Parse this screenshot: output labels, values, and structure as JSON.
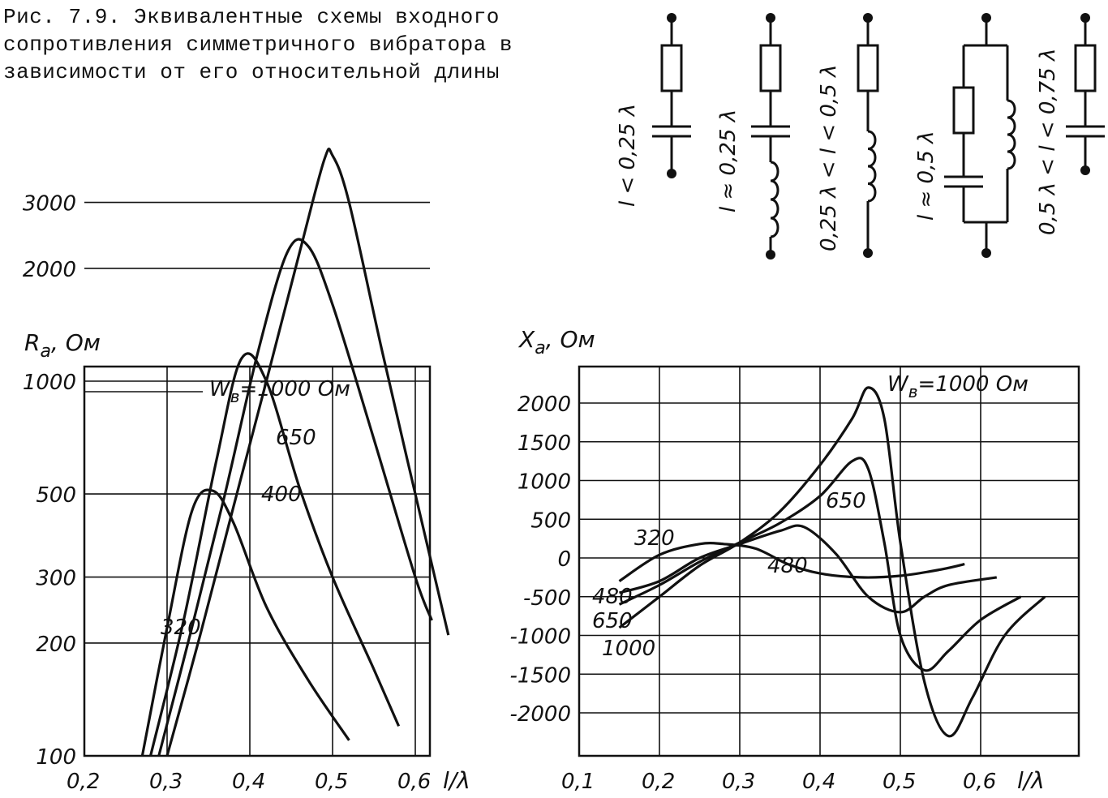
{
  "caption": "Рис. 7.9. Эквивалентные схемы входного сопротивления симметричного вибратора в зависимости от его относительной длины",
  "schematics": [
    {
      "label": "l < 0,25 λ"
    },
    {
      "label": "l ≈ 0,25 λ"
    },
    {
      "label": "0,25 λ < l < 0,5 λ"
    },
    {
      "label": "l ≈ 0,5 λ"
    },
    {
      "label": "0,5 λ < l < 0,75 λ"
    }
  ],
  "chart_data": [
    {
      "type": "line",
      "ylabel": "R",
      "ylabel_sub": "a",
      "ylabel_unit": ", Ом",
      "xlabel": "l/λ",
      "x_ticks": [
        "0,2",
        "0,3",
        "0,4",
        "0,5",
        "0,6"
      ],
      "y_ticks": [
        "100",
        "200",
        "300",
        "500",
        "1000",
        "2000",
        "3000"
      ],
      "y_scale": "log",
      "legend_text": "W",
      "legend_sub": "в",
      "legend_suffix": "=1000 Ом",
      "curve_labels": [
        "650",
        "400",
        "320"
      ],
      "series": [
        {
          "name": "320",
          "x": [
            0.27,
            0.3,
            0.33,
            0.355,
            0.38,
            0.42,
            0.47,
            0.52
          ],
          "y": [
            100,
            220,
            450,
            510,
            420,
            250,
            160,
            110
          ]
        },
        {
          "name": "400",
          "x": [
            0.28,
            0.32,
            0.36,
            0.39,
            0.42,
            0.46,
            0.5,
            0.55,
            0.58
          ],
          "y": [
            100,
            230,
            620,
            1150,
            1000,
            520,
            300,
            170,
            120
          ]
        },
        {
          "name": "650",
          "x": [
            0.29,
            0.33,
            0.37,
            0.41,
            0.445,
            0.47,
            0.5,
            0.55,
            0.6,
            0.62
          ],
          "y": [
            100,
            220,
            500,
            1200,
            2200,
            2300,
            1600,
            700,
            300,
            230
          ]
        },
        {
          "name": "1000",
          "x": [
            0.3,
            0.34,
            0.38,
            0.42,
            0.46,
            0.49,
            0.5,
            0.52,
            0.56,
            0.6,
            0.64
          ],
          "y": [
            100,
            210,
            460,
            1000,
            2200,
            3900,
            4000,
            3000,
            1200,
            500,
            210
          ]
        }
      ]
    },
    {
      "type": "line",
      "ylabel": "X",
      "ylabel_sub": "a",
      "ylabel_unit": ", Ом",
      "xlabel": "l/λ",
      "x_ticks": [
        "0,1",
        "0,2",
        "0,3",
        "0,4",
        "0,5",
        "0,6"
      ],
      "y_ticks": [
        "2000",
        "1500",
        "1000",
        "500",
        "0",
        "-500",
        "-1000",
        "-1500",
        "-2000"
      ],
      "legend_text": "W",
      "legend_sub": "в",
      "legend_suffix": "=1000 Ом",
      "curve_labels": [
        "320",
        "480",
        "650",
        "480",
        "650",
        "1000"
      ],
      "series": [
        {
          "name": "320",
          "x": [
            0.15,
            0.2,
            0.25,
            0.28,
            0.32,
            0.36,
            0.4,
            0.45,
            0.5,
            0.55,
            0.58
          ],
          "y": [
            -300,
            40,
            180,
            180,
            120,
            -80,
            -200,
            -250,
            -230,
            -150,
            -80
          ]
        },
        {
          "name": "480",
          "x": [
            0.15,
            0.2,
            0.25,
            0.3,
            0.35,
            0.38,
            0.42,
            0.46,
            0.5,
            0.53,
            0.56,
            0.62
          ],
          "y": [
            -450,
            -300,
            0,
            180,
            350,
            400,
            50,
            -500,
            -700,
            -500,
            -350,
            -250
          ]
        },
        {
          "name": "650",
          "x": [
            0.15,
            0.2,
            0.25,
            0.3,
            0.35,
            0.4,
            0.44,
            0.46,
            0.48,
            0.5,
            0.53,
            0.56,
            0.6,
            0.65
          ],
          "y": [
            -600,
            -350,
            -50,
            200,
            450,
            800,
            1250,
            1150,
            200,
            -1000,
            -1450,
            -1200,
            -800,
            -500
          ]
        },
        {
          "name": "1000",
          "x": [
            0.15,
            0.2,
            0.25,
            0.3,
            0.35,
            0.4,
            0.44,
            0.46,
            0.48,
            0.5,
            0.53,
            0.56,
            0.59,
            0.63,
            0.68
          ],
          "y": [
            -900,
            -500,
            -100,
            200,
            600,
            1200,
            1800,
            2200,
            1800,
            200,
            -1600,
            -2300,
            -1800,
            -1000,
            -500
          ]
        }
      ]
    }
  ]
}
